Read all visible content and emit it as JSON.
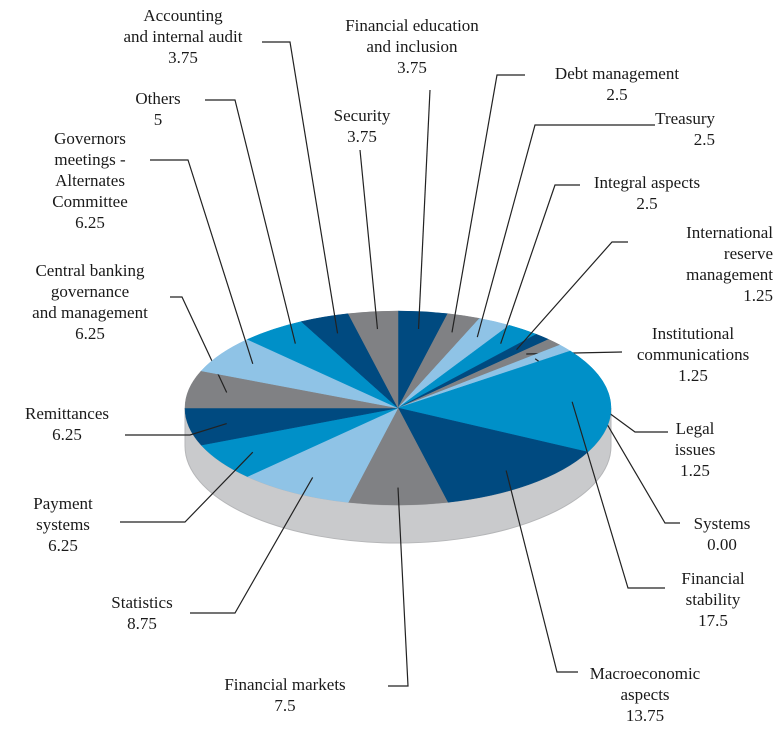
{
  "chart_data": {
    "type": "pie3d",
    "categories": [
      "Financial education\nand inclusion",
      "Debt management",
      "Treasury",
      "Integral aspects",
      "International\nreserve\nmanagement",
      "Institutional\ncommunications",
      "Legal\nissues",
      "Systems",
      "Financial\nstability",
      "Macroeconomic\naspects",
      "Financial markets",
      "Statistics",
      "Payment\nsystems",
      "Remittances",
      "Central banking\ngovernance\nand management",
      "Governors\nmeetings -\nAlternates\nCommittee",
      "Others",
      "Accounting\nand internal audit",
      "Security"
    ],
    "values": [
      3.75,
      2.5,
      2.5,
      2.5,
      1.25,
      1.25,
      1.25,
      0,
      17.5,
      13.75,
      7.5,
      8.75,
      6.25,
      6.25,
      6.25,
      6.25,
      5,
      3.75,
      3.75
    ],
    "value_labels": [
      "3.75",
      "2.5",
      "2.5",
      "2.5",
      "1.25",
      "1.25",
      "1.25",
      "0.00",
      "17.5",
      "13.75",
      "7.5",
      "8.75",
      "6.25",
      "6.25",
      "6.25",
      "6.25",
      "5",
      "3.75",
      "3.75"
    ],
    "colors": [
      "#004a80",
      "#808184",
      "#8fc3e6",
      "#0090c8",
      "#004a80",
      "#808184",
      "#8fc3e6",
      "#0090c8",
      "#0090c8",
      "#004a80",
      "#808184",
      "#8fc3e6",
      "#0090c8",
      "#004a80",
      "#808184",
      "#8fc3e6",
      "#0090c8",
      "#004a80",
      "#808184"
    ]
  }
}
